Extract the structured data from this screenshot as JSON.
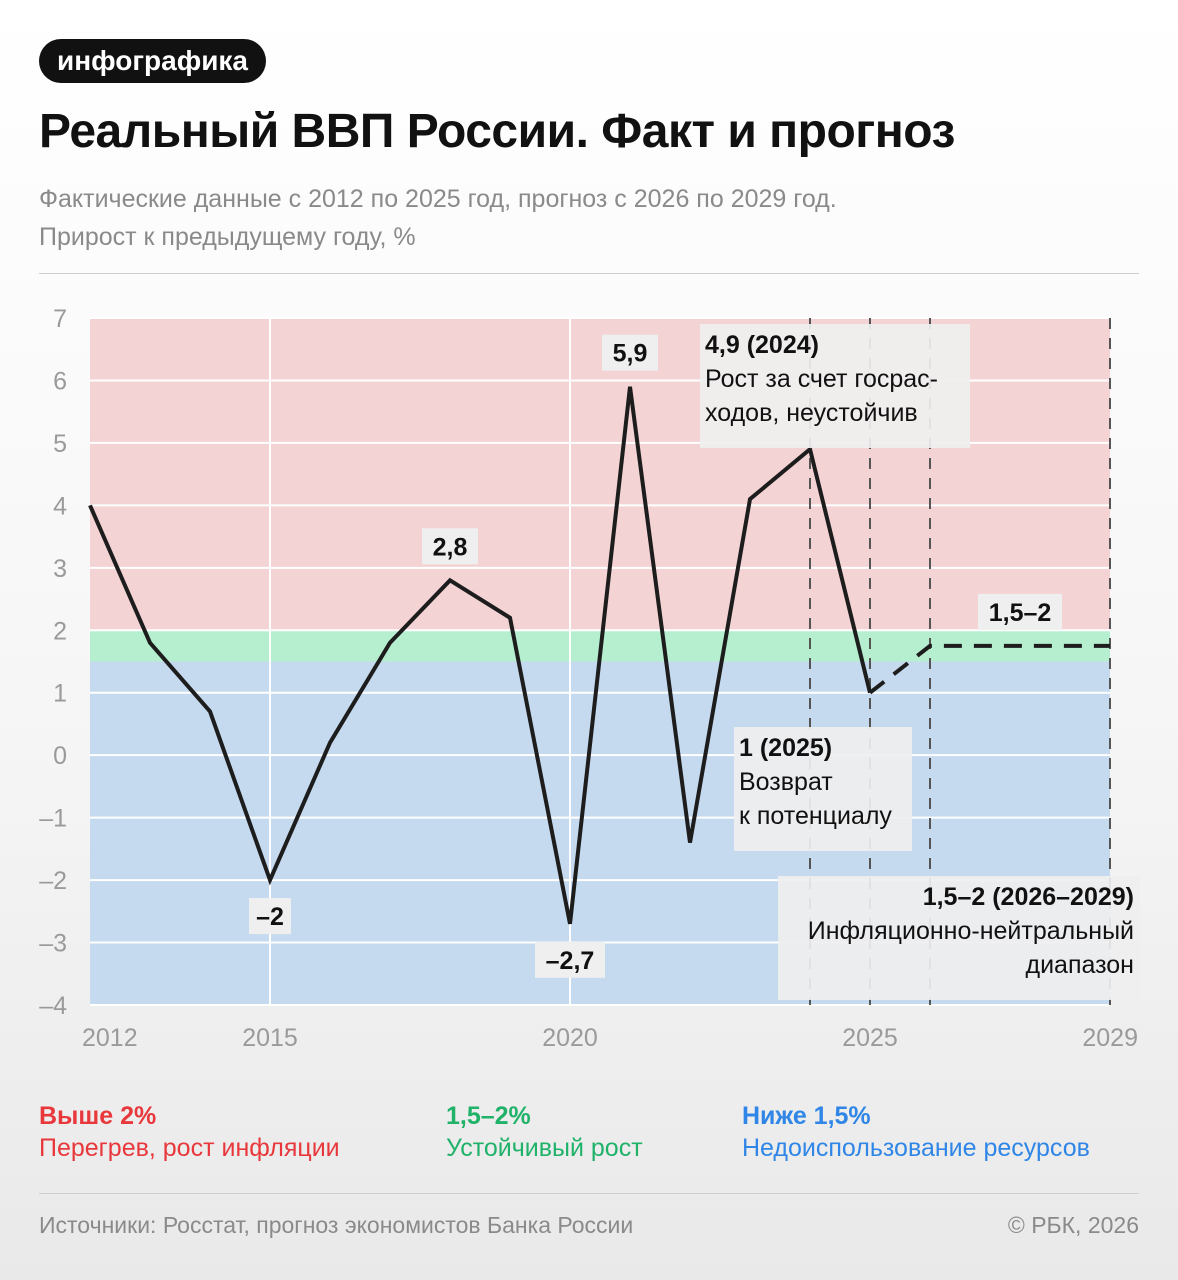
{
  "tag": "инфографика",
  "title": "Реальный ВВП России. Факт и прогноз",
  "subtitle_line1": "Фактические данные с 2012 по 2025 год, прогноз с 2026 по 2029 год.",
  "subtitle_line2": "Прирост к предыдущему году, %",
  "colors": {
    "above_band": "#f4d3d4",
    "stable_band": "#b6efd0",
    "below_band": "#c6daef",
    "above_text": "#e8383c",
    "stable_text": "#21b26a",
    "below_text": "#2f86e6",
    "line": "#1d1d1d"
  },
  "chart_data": {
    "type": "line",
    "ylim": [
      -4,
      7
    ],
    "xlim": [
      2012,
      2029
    ],
    "yticks": [
      "7",
      "6",
      "5",
      "4",
      "3",
      "2",
      "1",
      "0",
      "–1",
      "–2",
      "–3",
      "–4"
    ],
    "xticks": [
      {
        "year": 2012,
        "label": "2012"
      },
      {
        "year": 2015,
        "label": "2015"
      },
      {
        "year": 2020,
        "label": "2020"
      },
      {
        "year": 2025,
        "label": "2025"
      },
      {
        "year": 2029,
        "label": "2029"
      }
    ],
    "bands": [
      {
        "from": 2,
        "to": 7,
        "zone": "above"
      },
      {
        "from": 1.5,
        "to": 2,
        "zone": "stable"
      },
      {
        "from": -4,
        "to": 1.5,
        "zone": "below"
      }
    ],
    "fact": {
      "x": [
        2012,
        2013,
        2014,
        2015,
        2016,
        2017,
        2018,
        2019,
        2020,
        2021,
        2022,
        2023,
        2024,
        2025
      ],
      "y": [
        4.0,
        1.8,
        0.7,
        -2.0,
        0.2,
        1.8,
        2.8,
        2.2,
        -2.7,
        5.9,
        -1.4,
        4.1,
        4.9,
        1.0
      ]
    },
    "forecast": {
      "x": [
        2025,
        2026,
        2029
      ],
      "y": [
        1.0,
        1.75,
        1.75
      ],
      "range": "1,5–2"
    },
    "vlines_dashed": [
      2024,
      2025,
      2026,
      2029
    ],
    "vlines_solid": [
      2015,
      2020
    ],
    "data_labels": [
      {
        "x": 2018,
        "y": 2.8,
        "text": "2,8",
        "pos": "above"
      },
      {
        "x": 2021,
        "y": 5.9,
        "text": "5,9",
        "pos": "above"
      },
      {
        "x": 2015,
        "y": -2.0,
        "text": "–2",
        "pos": "below"
      },
      {
        "x": 2020,
        "y": -2.7,
        "text": "–2,7",
        "pos": "below"
      },
      {
        "x": 2027.5,
        "y": 1.75,
        "text": "1,5–2",
        "pos": "above"
      }
    ],
    "annotations": {
      "a2024": {
        "title": "4,9 (2024)",
        "lines": [
          "Рост за счет госрас-",
          "ходов, неустойчив"
        ]
      },
      "a2025": {
        "title": "1 (2025)",
        "lines": [
          "Возврат",
          "к потенциалу"
        ]
      },
      "aforecast": {
        "title": "1,5–2 (2026–2029)",
        "lines": [
          "Инфляционно-нейтральный",
          "диапазон"
        ]
      }
    }
  },
  "legend": [
    {
      "head": "Выше 2%",
      "desc": "Перегрев, рост инфляции"
    },
    {
      "head": "1,5–2%",
      "desc": "Устойчивый рост"
    },
    {
      "head": "Ниже 1,5%",
      "desc": "Недоиспользование ресурсов"
    }
  ],
  "footer": {
    "sources": "Источники: Росстат, прогноз экономистов Банка России",
    "copyright": "© РБК, 2026"
  }
}
